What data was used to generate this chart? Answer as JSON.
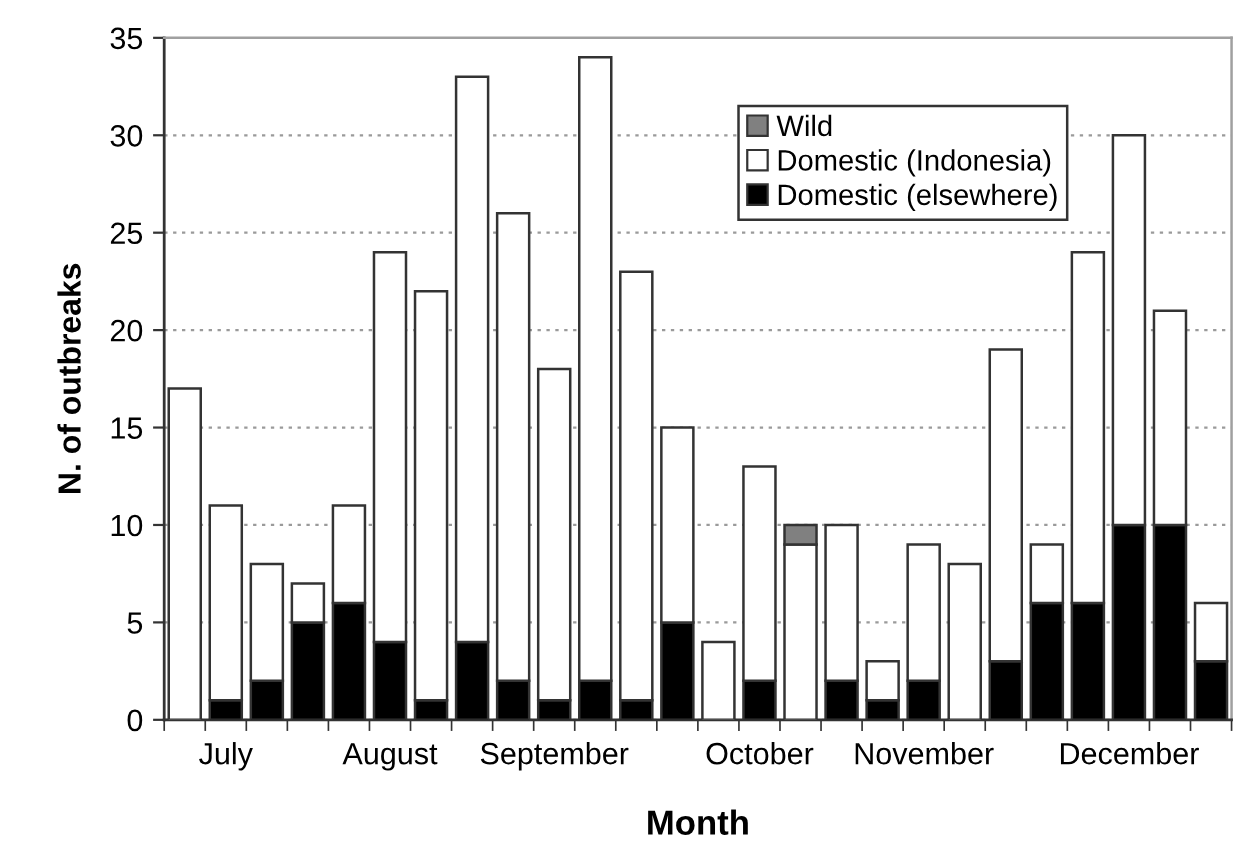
{
  "chart_data": {
    "type": "bar",
    "stacked": true,
    "xlabel": "Month",
    "ylabel": "N. of outbreaks",
    "categories": [
      null,
      "July",
      null,
      null,
      null,
      "August",
      null,
      null,
      null,
      "September",
      null,
      null,
      null,
      null,
      "October",
      null,
      null,
      null,
      "November",
      null,
      null,
      null,
      null,
      "December",
      null,
      null
    ],
    "series": [
      {
        "name": "Domestic (elsewhere)",
        "color": "#000000",
        "values": [
          0,
          1,
          2,
          5,
          6,
          4,
          1,
          4,
          2,
          1,
          2,
          1,
          5,
          0,
          2,
          0,
          2,
          1,
          2,
          0,
          3,
          6,
          6,
          10,
          10,
          3
        ]
      },
      {
        "name": "Domestic (Indonesia)",
        "color": "#ffffff",
        "values": [
          17,
          10,
          6,
          2,
          5,
          20,
          21,
          29,
          24,
          17,
          32,
          22,
          10,
          4,
          11,
          9,
          8,
          2,
          7,
          8,
          16,
          3,
          18,
          20,
          11,
          3
        ]
      },
      {
        "name": "Wild",
        "color": "#808080",
        "values": [
          0,
          0,
          0,
          0,
          0,
          0,
          0,
          0,
          0,
          0,
          0,
          0,
          0,
          0,
          0,
          1,
          0,
          0,
          0,
          0,
          0,
          0,
          0,
          0,
          0,
          0
        ]
      }
    ],
    "ylim": [
      0,
      35
    ],
    "yticks": [
      0,
      5,
      10,
      15,
      20,
      25,
      30,
      35
    ],
    "grid": "y",
    "legend": "top right"
  }
}
